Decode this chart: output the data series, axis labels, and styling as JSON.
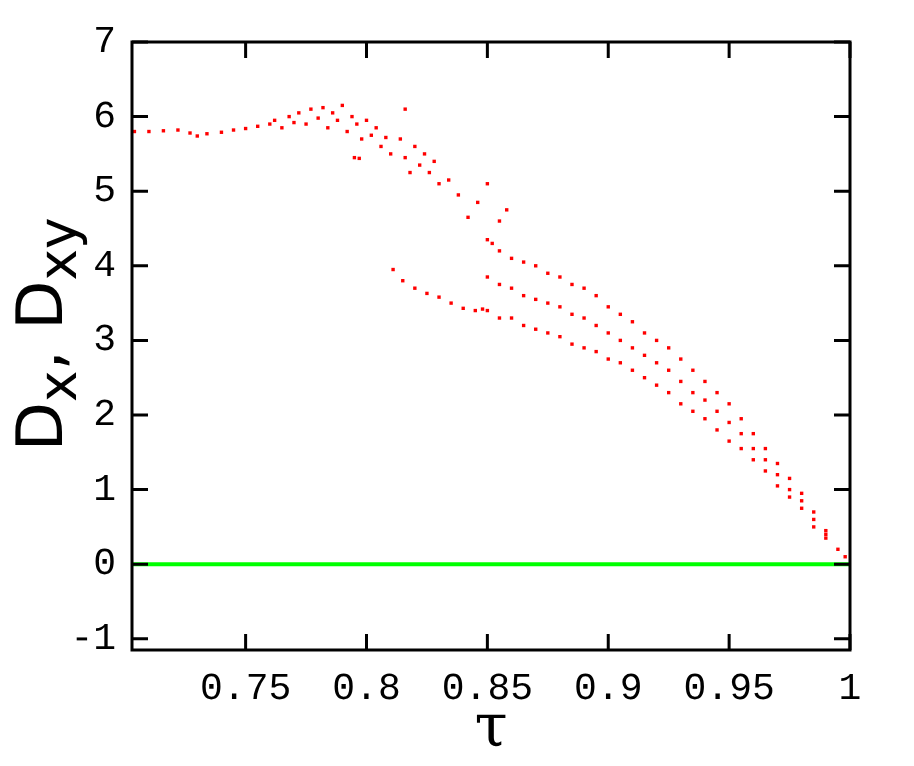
{
  "chart_data": {
    "type": "scatter",
    "xlabel": "τ",
    "ylabel": "D$_{x}$, D$_{xy}$",
    "xlim": [
      0.703,
      1
    ],
    "ylim": [
      -1.15,
      7
    ],
    "xticks": [
      0.75,
      0.8,
      0.85,
      0.9,
      0.95,
      1
    ],
    "yticks": [
      -1,
      0,
      1,
      2,
      3,
      4,
      5,
      6,
      7
    ],
    "grid": false,
    "marker": "square",
    "ref_lines": [
      {
        "axis": "y",
        "value": 0,
        "color": "#00ff00"
      }
    ],
    "series": [
      {
        "color": "#ff0000",
        "x": [
          0.704,
          0.71,
          0.716,
          0.722,
          0.727,
          0.73,
          0.734,
          0.74,
          0.745,
          0.75,
          0.755,
          0.76,
          0.762,
          0.765,
          0.768,
          0.77,
          0.772,
          0.775,
          0.777,
          0.78,
          0.782,
          0.784,
          0.786,
          0.788,
          0.79,
          0.792,
          0.794,
          0.796,
          0.798,
          0.8,
          0.802,
          0.804,
          0.806,
          0.808,
          0.81,
          0.795,
          0.797,
          0.814,
          0.816,
          0.818,
          0.82,
          0.822,
          0.824,
          0.826,
          0.828,
          0.816,
          0.83,
          0.834,
          0.838,
          0.842,
          0.846,
          0.85,
          0.855,
          0.858,
          0.852,
          0.811,
          0.815,
          0.82,
          0.825,
          0.83,
          0.835,
          0.84,
          0.845,
          0.848,
          0.85,
          0.85,
          0.85,
          0.855,
          0.855,
          0.855,
          0.86,
          0.86,
          0.86,
          0.865,
          0.865,
          0.865,
          0.87,
          0.87,
          0.87,
          0.875,
          0.875,
          0.875,
          0.88,
          0.88,
          0.88,
          0.885,
          0.885,
          0.885,
          0.89,
          0.89,
          0.89,
          0.895,
          0.895,
          0.895,
          0.9,
          0.9,
          0.9,
          0.905,
          0.905,
          0.905,
          0.91,
          0.91,
          0.91,
          0.915,
          0.915,
          0.915,
          0.92,
          0.92,
          0.92,
          0.925,
          0.925,
          0.925,
          0.93,
          0.93,
          0.93,
          0.935,
          0.935,
          0.935,
          0.94,
          0.94,
          0.94,
          0.945,
          0.945,
          0.945,
          0.95,
          0.95,
          0.95,
          0.955,
          0.955,
          0.955,
          0.96,
          0.96,
          0.96,
          0.965,
          0.965,
          0.965,
          0.97,
          0.97,
          0.97,
          0.975,
          0.975,
          0.975,
          0.98,
          0.98,
          0.98,
          0.985,
          0.985,
          0.985,
          0.99,
          0.99,
          0.99,
          0.995,
          0.998
        ],
        "values": [
          5.8,
          5.8,
          5.81,
          5.82,
          5.78,
          5.74,
          5.77,
          5.79,
          5.82,
          5.84,
          5.87,
          5.9,
          5.95,
          5.85,
          6.0,
          5.92,
          6.05,
          5.9,
          6.1,
          5.98,
          6.12,
          5.85,
          6.05,
          5.95,
          6.15,
          5.8,
          6.0,
          5.9,
          5.7,
          5.95,
          5.75,
          5.85,
          5.6,
          5.72,
          5.5,
          5.45,
          5.44,
          5.7,
          5.45,
          5.25,
          5.6,
          5.35,
          5.5,
          5.25,
          5.4,
          6.1,
          5.1,
          5.15,
          4.95,
          4.65,
          4.85,
          5.1,
          4.6,
          4.75,
          4.3,
          3.95,
          3.8,
          3.7,
          3.63,
          3.58,
          3.5,
          3.43,
          3.4,
          3.42,
          3.85,
          4.35,
          3.4,
          3.75,
          4.2,
          3.3,
          3.7,
          4.1,
          3.3,
          3.6,
          4.05,
          3.2,
          3.55,
          4.0,
          3.15,
          3.5,
          3.9,
          3.1,
          3.45,
          3.85,
          3.05,
          3.35,
          3.75,
          2.95,
          3.3,
          3.7,
          2.9,
          3.2,
          3.6,
          2.85,
          3.1,
          3.45,
          2.75,
          3.0,
          3.35,
          2.7,
          2.9,
          3.25,
          2.6,
          2.8,
          3.1,
          2.5,
          2.7,
          3.0,
          2.4,
          2.6,
          2.9,
          2.3,
          2.45,
          2.75,
          2.15,
          2.3,
          2.6,
          2.05,
          2.2,
          2.45,
          1.95,
          2.05,
          2.3,
          1.8,
          1.9,
          2.15,
          1.65,
          1.75,
          1.95,
          1.55,
          1.55,
          1.75,
          1.4,
          1.4,
          1.55,
          1.25,
          1.2,
          1.35,
          1.05,
          1.0,
          1.15,
          0.9,
          0.85,
          0.95,
          0.75,
          0.6,
          0.7,
          0.5,
          0.4,
          0.45,
          0.35,
          0.2,
          0.1
        ]
      }
    ]
  }
}
